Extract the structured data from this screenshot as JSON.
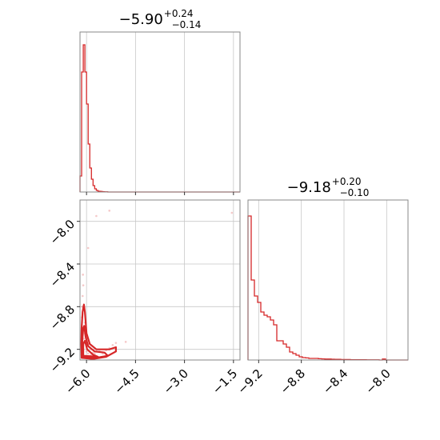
{
  "chart_data": {
    "type": "corner",
    "color": "#d62728",
    "panels": [
      {
        "id": "hist_param1",
        "type": "histogram",
        "title": {
          "median": "−5.90",
          "plus": "+0.24",
          "minus": "−0.14"
        },
        "xlim": [
          -6.2,
          -1.3
        ],
        "grid_x": [
          -6.0,
          -4.5,
          -3.0,
          -1.5
        ],
        "ylim": [
          0,
          1.0
        ],
        "bin_edges": [
          -6.2,
          -6.15,
          -6.1,
          -6.05,
          -6.0,
          -5.95,
          -5.9,
          -5.85,
          -5.8,
          -5.75,
          -5.7,
          -5.65,
          -5.6,
          -5.55,
          -5.5,
          -5.45,
          -5.4,
          -5.35,
          -5.3,
          -5.25,
          -5.2,
          -1.3
        ],
        "values": [
          0.1,
          0.75,
          0.92,
          0.75,
          0.55,
          0.3,
          0.15,
          0.08,
          0.04,
          0.02,
          0.01,
          0.005,
          0.004,
          0.003,
          0.002,
          0.001,
          0.001,
          0.0,
          0.0,
          0.0,
          0.0
        ]
      },
      {
        "id": "hist_param2",
        "type": "histogram",
        "title": {
          "median": "−9.18",
          "plus": "+0.20",
          "minus": "−0.10"
        },
        "xlim": [
          -9.3,
          -7.8
        ],
        "grid_x": [
          -9.2,
          -8.8,
          -8.4,
          -8.0
        ],
        "tick_labels": [
          "−9.2",
          "−8.8",
          "−8.4",
          "−8.0"
        ],
        "ylim": [
          0,
          1.0
        ],
        "bin_edges": [
          -9.3,
          -9.27,
          -9.24,
          -9.21,
          -9.18,
          -9.15,
          -9.12,
          -9.09,
          -9.06,
          -9.03,
          -9.0,
          -8.97,
          -8.94,
          -8.91,
          -8.88,
          -8.85,
          -8.82,
          -8.79,
          -8.76,
          -8.73,
          -8.7,
          -8.67,
          -8.64,
          -8.61,
          -8.58,
          -8.55,
          -8.52,
          -8.49,
          -8.46,
          -8.43,
          -8.4,
          -8.37,
          -8.34,
          -8.31,
          -8.28,
          -8.25,
          -8.22,
          -8.19,
          -8.16,
          -8.13,
          -8.1,
          -8.07,
          -8.04,
          -8.01,
          -7.98,
          -7.95,
          -7.8
        ],
        "values": [
          0.9,
          0.5,
          0.4,
          0.36,
          0.3,
          0.28,
          0.27,
          0.25,
          0.22,
          0.12,
          0.12,
          0.1,
          0.08,
          0.05,
          0.04,
          0.03,
          0.02,
          0.015,
          0.013,
          0.01,
          0.01,
          0.01,
          0.008,
          0.007,
          0.006,
          0.006,
          0.005,
          0.004,
          0.004,
          0.003,
          0.003,
          0.003,
          0.002,
          0.002,
          0.002,
          0.002,
          0.002,
          0.001,
          0.001,
          0.001,
          0.001,
          0.0,
          0.006,
          0.0,
          0.0,
          0.0
        ]
      },
      {
        "id": "joint",
        "type": "scatter_contour",
        "xlim": [
          -6.2,
          -1.3
        ],
        "ylim": [
          -9.3,
          -7.8
        ],
        "x_ticks": [
          -6.0,
          -4.5,
          -3.0,
          -1.5
        ],
        "x_tick_labels": [
          "−6.0",
          "−4.5",
          "−3.0",
          "−1.5"
        ],
        "y_ticks": [
          -8.0,
          -8.4,
          -8.8,
          -9.2
        ],
        "y_tick_labels": [
          "−8.0",
          "−8.4",
          "−8.8",
          "−9.2"
        ],
        "points": [
          [
            -6.15,
            -9.25
          ],
          [
            -6.12,
            -9.2
          ],
          [
            -6.1,
            -9.15
          ],
          [
            -6.08,
            -9.1
          ],
          [
            -6.05,
            -9.05
          ],
          [
            -6.02,
            -9.0
          ],
          [
            -6.0,
            -9.22
          ],
          [
            -5.95,
            -9.24
          ],
          [
            -5.9,
            -9.26
          ],
          [
            -5.85,
            -9.25
          ],
          [
            -5.8,
            -9.23
          ],
          [
            -5.75,
            -9.24
          ],
          [
            -5.7,
            -9.22
          ],
          [
            -6.14,
            -8.9
          ],
          [
            -6.13,
            -8.8
          ],
          [
            -6.12,
            -8.7
          ],
          [
            -6.1,
            -8.6
          ],
          [
            -6.11,
            -8.5
          ],
          [
            -6.05,
            -8.95
          ],
          [
            -6.0,
            -9.1
          ],
          [
            -5.95,
            -9.15
          ],
          [
            -5.9,
            -9.18
          ],
          [
            -5.85,
            -9.2
          ],
          [
            -5.6,
            -9.22
          ],
          [
            -5.5,
            -9.24
          ],
          [
            -5.4,
            -9.21
          ],
          [
            -5.3,
            -9.19
          ],
          [
            -5.2,
            -9.16
          ],
          [
            -5.1,
            -9.14
          ],
          [
            -4.8,
            -9.13
          ],
          [
            -5.95,
            -8.25
          ],
          [
            -5.7,
            -7.95
          ],
          [
            -5.3,
            -7.9
          ],
          [
            -1.55,
            -7.92
          ]
        ],
        "contour_levels": [
          [
            [
              -6.15,
              -9.28
            ],
            [
              -6.16,
              -9.15
            ],
            [
              -6.15,
              -9.0
            ],
            [
              -6.12,
              -8.85
            ],
            [
              -6.08,
              -8.78
            ],
            [
              -6.05,
              -8.85
            ],
            [
              -6.0,
              -9.05
            ],
            [
              -5.9,
              -9.15
            ],
            [
              -5.7,
              -9.2
            ],
            [
              -5.3,
              -9.2
            ],
            [
              -5.1,
              -9.18
            ],
            [
              -5.1,
              -9.22
            ],
            [
              -5.4,
              -9.27
            ],
            [
              -5.8,
              -9.29
            ],
            [
              -6.15,
              -9.28
            ]
          ],
          [
            [
              -6.13,
              -9.27
            ],
            [
              -6.13,
              -9.12
            ],
            [
              -6.1,
              -9.0
            ],
            [
              -6.07,
              -8.98
            ],
            [
              -6.03,
              -9.08
            ],
            [
              -5.95,
              -9.17
            ],
            [
              -5.75,
              -9.22
            ],
            [
              -5.45,
              -9.23
            ],
            [
              -5.35,
              -9.26
            ],
            [
              -5.7,
              -9.28
            ],
            [
              -6.13,
              -9.27
            ]
          ],
          [
            [
              -6.1,
              -9.26
            ],
            [
              -6.1,
              -9.15
            ],
            [
              -6.05,
              -9.12
            ],
            [
              -5.98,
              -9.2
            ],
            [
              -5.8,
              -9.25
            ],
            [
              -5.65,
              -9.27
            ],
            [
              -6.1,
              -9.26
            ]
          ]
        ]
      }
    ]
  }
}
